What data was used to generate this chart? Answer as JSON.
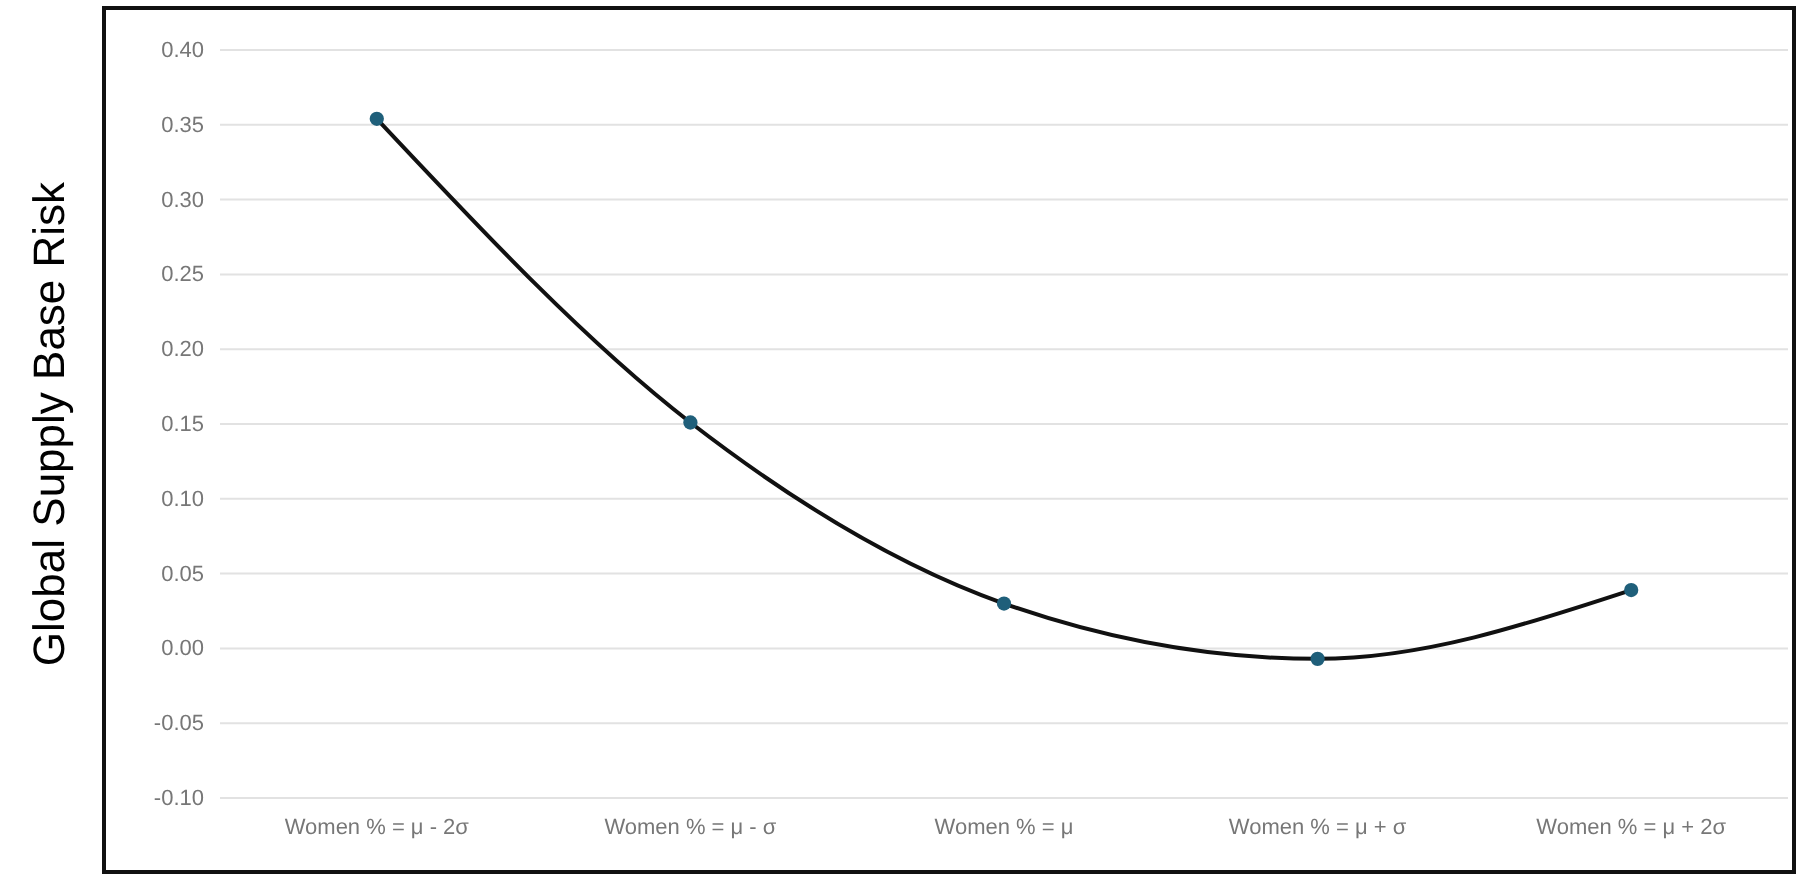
{
  "chart_data": {
    "type": "line",
    "ylabel": "Global Supply Base Risk",
    "categories": [
      "Women % = μ - 2σ",
      "Women % = μ - σ",
      "Women % = μ",
      "Women % = μ + σ",
      "Women % = μ + 2σ"
    ],
    "series": [
      {
        "color": "#1f5f7a",
        "values": [
          0.354,
          0.151,
          0.03,
          -0.007,
          0.039
        ]
      }
    ],
    "ylim": [
      -0.1,
      0.4
    ],
    "yticks": [
      {
        "value": -0.1,
        "label": "-0.10"
      },
      {
        "value": -0.05,
        "label": "-0.05"
      },
      {
        "value": 0,
        "label": "0.00"
      },
      {
        "value": 0.05,
        "label": "0.05"
      },
      {
        "value": 0.1,
        "label": "0.10"
      },
      {
        "value": 0.15,
        "label": "0.15"
      },
      {
        "value": 0.2,
        "label": "0.20"
      },
      {
        "value": 0.25,
        "label": "0.25"
      },
      {
        "value": 0.3,
        "label": "0.30"
      },
      {
        "value": 0.35,
        "label": "0.35"
      },
      {
        "value": 0.4,
        "label": "0.40"
      }
    ],
    "grid": "y",
    "marker": "circle",
    "line_style": "solid"
  }
}
